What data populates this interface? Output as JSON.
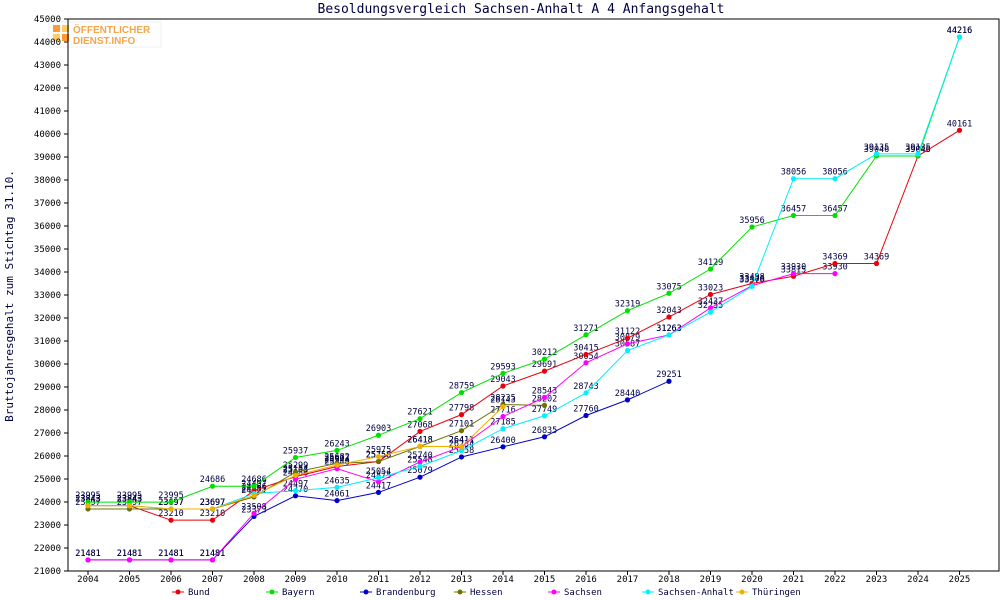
{
  "watermark": {
    "line1": "ÖFFENTLICHER",
    "line2": "DIENST.INFO"
  },
  "chart_data": {
    "type": "line",
    "title": "Besoldungsvergleich Sachsen-Anhalt A 4 Anfangsgehalt",
    "xlabel": "",
    "ylabel": "Bruttojahresgehalt zum Stichtag 31.10.",
    "ylim": [
      21000,
      45000
    ],
    "ytick_step": 1000,
    "grid": false,
    "legend_position": "bottom",
    "categories": [
      "2004",
      "2005",
      "2006",
      "2007",
      "2008",
      "2009",
      "2010",
      "2011",
      "2012",
      "2013",
      "2014",
      "2015",
      "2016",
      "2017",
      "2018",
      "2019",
      "2020",
      "2021",
      "2022",
      "2023",
      "2024",
      "2025"
    ],
    "series": [
      {
        "name": "Bund",
        "color": "#e8000b",
        "values": [
          23843,
          23843,
          23210,
          23210,
          24497,
          25103,
          25544,
          25758,
          27068,
          27798,
          29043,
          29691,
          30415,
          31122,
          32043,
          33023,
          33498,
          33815,
          34369,
          34369,
          39045,
          40161
        ]
      },
      {
        "name": "Bayern",
        "color": "#00e000",
        "values": [
          23995,
          23995,
          23995,
          24686,
          24686,
          25937,
          26243,
          26903,
          27621,
          28759,
          29593,
          30212,
          31271,
          32319,
          33075,
          34129,
          35956,
          36457,
          36457,
          39046,
          39046,
          44216
        ]
      },
      {
        "name": "Brandenburg",
        "color": "#0000cc",
        "values": [
          21481,
          21481,
          21481,
          21481,
          23373,
          24270,
          24061,
          24417,
          25079,
          25958,
          26400,
          26835,
          27760,
          28440,
          29251,
          null,
          null,
          null,
          null,
          null,
          null,
          null
        ]
      },
      {
        "name": "Hessen",
        "color": "#707000",
        "values": [
          23697,
          23697,
          23697,
          23697,
          24221,
          25299,
          25682,
          25758,
          26418,
          27101,
          28235,
          28202,
          null,
          null,
          null,
          null,
          null,
          null,
          null,
          null,
          null,
          null
        ]
      },
      {
        "name": "Sachsen",
        "color": "#ff00ff",
        "values": [
          21481,
          21481,
          21481,
          21481,
          23508,
          24986,
          25448,
          24875,
          25740,
          26411,
          27716,
          28543,
          30054,
          30879,
          31263,
          32437,
          33406,
          33930,
          33930,
          null,
          null,
          null
        ]
      },
      {
        "name": "Sachsen-Anhalt",
        "color": "#00f0ff",
        "values": [
          23843,
          23843,
          23697,
          23697,
          24366,
          24497,
          24635,
          25054,
          25548,
          26234,
          27185,
          27749,
          28743,
          30587,
          31263,
          32255,
          33376,
          38056,
          38056,
          39135,
          39135,
          44216
        ]
      },
      {
        "name": "Thüringen",
        "color": "#f0b000",
        "values": [
          23843,
          23843,
          23697,
          23697,
          24285,
          25154,
          25607,
          25975,
          26418,
          26411,
          28143,
          null,
          null,
          null,
          null,
          null,
          null,
          null,
          null,
          null,
          null,
          null
        ]
      }
    ]
  }
}
